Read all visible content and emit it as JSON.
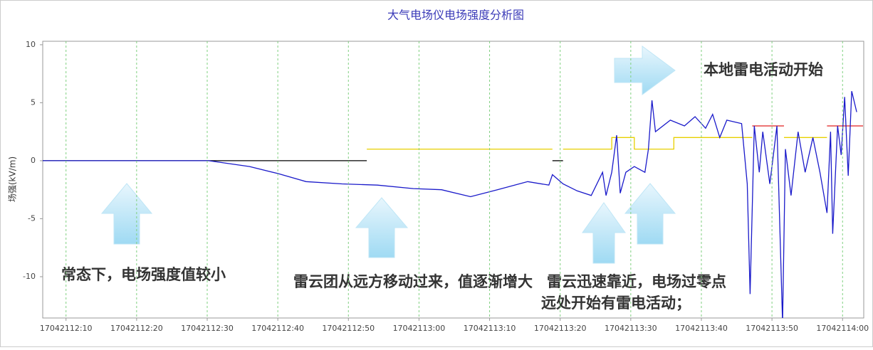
{
  "chart_data": {
    "type": "line",
    "title": "大气电场仪电场强度分析图",
    "ylabel": "场强(kV/m)",
    "xlim": [
      726.7,
      843
    ],
    "ylim": [
      -13.56,
      10.3
    ],
    "xticks": [
      {
        "value": 730,
        "label": "17042112:10"
      },
      {
        "value": 740,
        "label": "17042112:20"
      },
      {
        "value": 750,
        "label": "17042112:30"
      },
      {
        "value": 760,
        "label": "17042112:40"
      },
      {
        "value": 770,
        "label": "17042112:50"
      },
      {
        "value": 780,
        "label": "17042113:00"
      },
      {
        "value": 790,
        "label": "17042113:10"
      },
      {
        "value": 800,
        "label": "17042113:20"
      },
      {
        "value": 810,
        "label": "17042113:30"
      },
      {
        "value": 820,
        "label": "17042113:40"
      },
      {
        "value": 830,
        "label": "17042113:50"
      },
      {
        "value": 840,
        "label": "17042114:00"
      }
    ],
    "yticks": [
      -10,
      -5,
      0,
      5,
      10
    ],
    "grid_x": true,
    "series": [
      {
        "color": "#000000",
        "x": [
          726.7,
          772.6,
          null,
          798.9,
          800.4
        ],
        "values": [
          0,
          0,
          null,
          0,
          0
        ]
      },
      {
        "color": "#e8d000",
        "x": [
          772.6,
          798.9,
          null,
          800.4,
          807.3,
          807.3,
          810.5,
          810.5,
          816.1,
          816.1,
          827.2,
          null,
          831.7,
          837.8
        ],
        "values": [
          1,
          1,
          null,
          1,
          1,
          2,
          2,
          1,
          1,
          2,
          2,
          null,
          2,
          2
        ]
      },
      {
        "color": "#e02020",
        "x": [
          827.2,
          831.7,
          null,
          837.8,
          842.9
        ],
        "values": [
          3,
          3,
          null,
          3,
          3
        ]
      },
      {
        "color": "#1a1aca",
        "x": [
          726.7,
          750.2,
          756.0,
          760.0,
          764.0,
          769.1,
          774.1,
          779.2,
          783.2,
          787.3,
          791.1,
          795.4,
          798.4,
          798.9,
          800.4,
          802.4,
          804.4,
          806.0,
          806.5,
          807.3,
          808.0,
          808.5,
          809.3,
          810.5,
          812.0,
          812.5,
          813.0,
          813.5,
          815.6,
          817.6,
          819.1,
          820.6,
          821.6,
          822.6,
          823.6,
          825.7,
          826.5,
          826.9,
          827.5,
          828.2,
          828.7,
          829.7,
          830.7,
          831.5,
          831.9,
          832.7,
          833.7,
          834.7,
          835.8,
          836.8,
          837.8,
          838.3,
          838.6,
          839.3,
          839.8,
          840.3,
          840.8,
          841.3,
          842.0
        ],
        "values": [
          0,
          0,
          -0.5,
          -1.1,
          -1.8,
          -2.0,
          -2.1,
          -2.4,
          -2.5,
          -3.1,
          -2.5,
          -1.8,
          -2.1,
          -1.2,
          -2.0,
          -2.6,
          -3.0,
          -1.0,
          -3.0,
          -1.0,
          2.2,
          -2.8,
          -1.0,
          -0.5,
          -1.0,
          1.0,
          5.2,
          2.5,
          3.5,
          3.0,
          3.8,
          2.8,
          4.0,
          2.0,
          3.5,
          3.2,
          -2.0,
          -11.5,
          3.0,
          -1.0,
          2.5,
          -2.0,
          3.0,
          -14.0,
          1.0,
          -3.0,
          2.5,
          -1.0,
          2.0,
          -1.0,
          -4.5,
          2.5,
          -6.3,
          3.0,
          0.5,
          5.5,
          -1.3,
          6.0,
          4.2
        ]
      }
    ],
    "annotations": [
      "本地雷电活动开始",
      "常态下，电场强度值较小",
      "雷云团从远方移动过来，值逐渐增大",
      "雷云迅速靠近，电场过零点",
      "远处开始有雷电活动；"
    ]
  }
}
